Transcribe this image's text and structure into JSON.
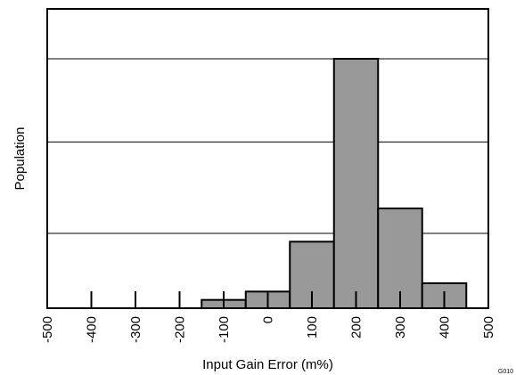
{
  "chart_data": {
    "type": "bar",
    "title": "",
    "xlabel": "Input Gain Error (m%)",
    "ylabel": "Population",
    "x_ticks": [
      "-500",
      "-400",
      "-300",
      "-200",
      "-100",
      "0",
      "100",
      "200",
      "300",
      "400",
      "500"
    ],
    "xlim": [
      -500,
      500
    ],
    "bin_width": 100,
    "bins": [
      {
        "center": -400,
        "value": 0
      },
      {
        "center": -300,
        "value": 0
      },
      {
        "center": -200,
        "value": 0
      },
      {
        "center": -100,
        "value": 1
      },
      {
        "center": 0,
        "value": 2
      },
      {
        "center": 100,
        "value": 8
      },
      {
        "center": 200,
        "value": 30
      },
      {
        "center": 300,
        "value": 12
      },
      {
        "center": 400,
        "value": 3
      }
    ],
    "ylim": [
      0,
      36
    ],
    "y_gridlines": [
      9,
      20,
      30
    ],
    "y_tick_labels": false,
    "grid": true,
    "legend": "none",
    "colors": {
      "bar_fill": "#999999",
      "bar_stroke": "#000000",
      "grid": "#000000",
      "axes": "#000000"
    },
    "figure_id": "G010"
  }
}
